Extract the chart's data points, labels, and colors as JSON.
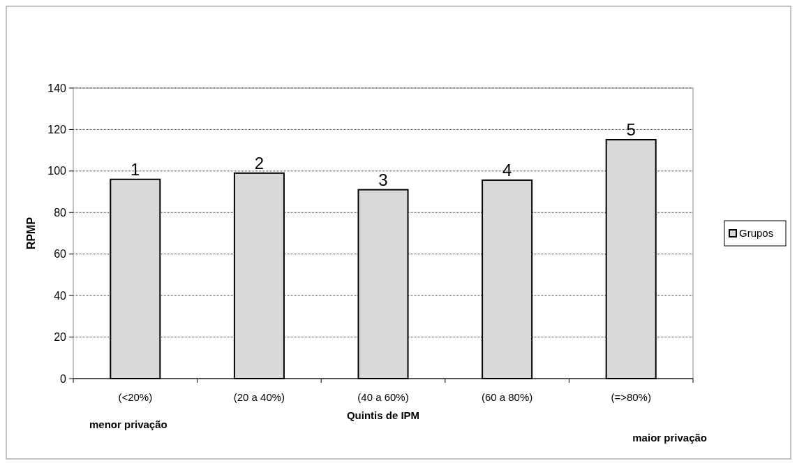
{
  "chart_data": {
    "type": "bar",
    "xlabel": "Quintis de IPM",
    "ylabel": "RPMP",
    "categories": [
      "(<20%)",
      "(20 a 40%)",
      "(40 a 60%)",
      "(60 a 80%)",
      "(=>80%)"
    ],
    "series": [
      {
        "name": "Grupos",
        "color": "#d9d9d9",
        "values": [
          96,
          99,
          91,
          95.6,
          115.1
        ]
      }
    ],
    "ylim": [
      0,
      140
    ],
    "yticks": [
      0,
      20,
      40,
      60,
      80,
      100,
      120,
      140
    ],
    "grid": "y",
    "legend": "right",
    "annotations": [
      "menor privação",
      "maior privação",
      {
        "text": "1",
        "x": "(<20%)",
        "y": 96
      },
      {
        "text": "2",
        "x": "(20 a 40%)",
        "y": 99
      },
      {
        "text": "3",
        "x": "(40 a 60%)",
        "y": 91
      },
      {
        "text": "4",
        "x": "(60 a 80%)",
        "y": 95.6
      },
      {
        "text": "5",
        "x": "(=>80%)",
        "y": 115.1
      }
    ]
  }
}
